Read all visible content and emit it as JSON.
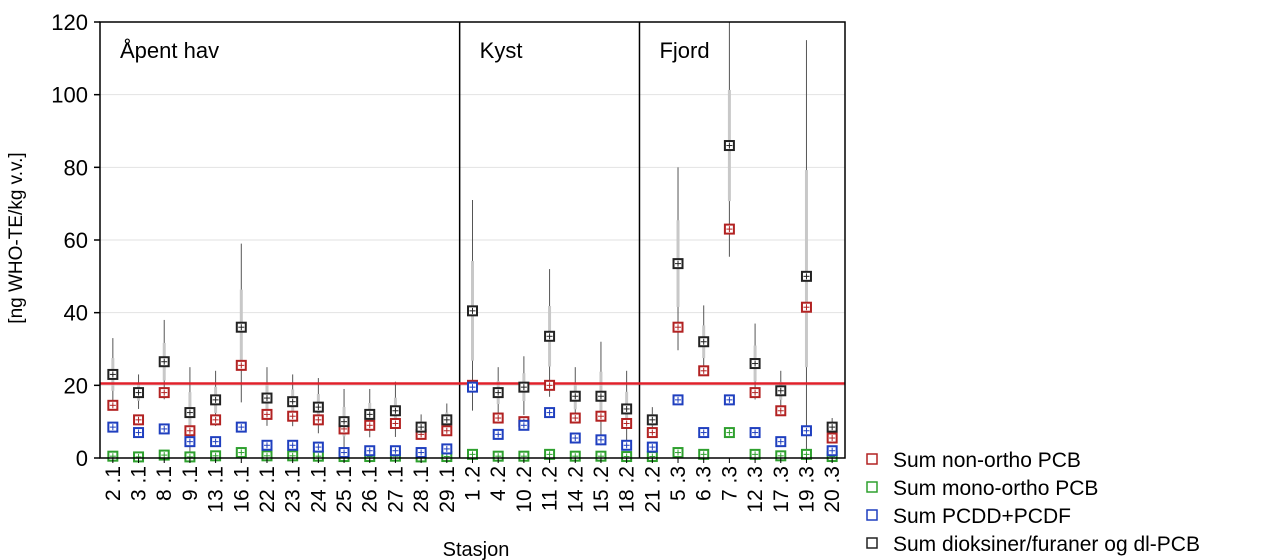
{
  "chart_data": {
    "type": "scatter",
    "xlabel": "Stasjon",
    "ylabel": "[ng WHO-TE/kg v.v.]",
    "ylim": [
      0,
      120
    ],
    "yticks": [
      0,
      20,
      40,
      60,
      80,
      100,
      120
    ],
    "grid": true,
    "legend_position": "bottom-right",
    "reference_line": {
      "y": 20.5,
      "color": "#e0202a"
    },
    "regions": [
      {
        "label": "Åpent hav",
        "from": 0,
        "to": 14
      },
      {
        "label": "Kyst",
        "from": 14,
        "to": 21
      },
      {
        "label": "Fjord",
        "from": 21,
        "to": 28
      }
    ],
    "categories": [
      "2 .1",
      "3 .1",
      "8 .1",
      "9 .1",
      "13 .1",
      "16 .1",
      "22 .1",
      "23 .1",
      "24 .1",
      "25 .1",
      "26 .1",
      "27 .1",
      "28 .1",
      "29 .1",
      "1 .2",
      "4 .2",
      "10 .2",
      "11 .2",
      "14 .2",
      "15 .2",
      "18 .2",
      "21 .2",
      "5 .3",
      "6 .3",
      "7 .3",
      "12 .3",
      "17 .3",
      "19 .3",
      "20 .3"
    ],
    "series": [
      {
        "name": "Sum non-ortho PCB",
        "color": "#b22222",
        "values": [
          14.5,
          10.5,
          18,
          7.5,
          10.5,
          25.5,
          12,
          11.5,
          10.5,
          8,
          9,
          9.5,
          6.5,
          7.5,
          20,
          11,
          10,
          20,
          11,
          11.5,
          9.5,
          7,
          36,
          24,
          63,
          18,
          13,
          41.5,
          5.5
        ]
      },
      {
        "name": "Sum mono-ortho PCB",
        "color": "#2ea02e",
        "values": [
          0.5,
          0.3,
          0.8,
          0.3,
          0.6,
          1.5,
          0.6,
          0.6,
          0.5,
          0.4,
          0.4,
          0.5,
          0.3,
          0.4,
          1,
          0.5,
          0.5,
          1,
          0.5,
          0.5,
          0.4,
          0.4,
          1.5,
          1,
          7,
          1,
          0.6,
          1,
          0.4
        ]
      },
      {
        "name": "Sum PCDD+PCDF",
        "color": "#1f3fbf",
        "values": [
          8.5,
          7,
          8,
          4.5,
          4.5,
          8.5,
          3.5,
          3.5,
          3,
          1.5,
          2,
          2,
          1.5,
          2.5,
          19.5,
          6.5,
          9,
          12.5,
          5.5,
          5,
          3.5,
          3,
          16,
          7,
          16,
          7,
          4.5,
          7.5,
          2
        ]
      },
      {
        "name": "Sum dioksiner/furaner og dl-PCB",
        "color": "#222222",
        "values": [
          23,
          18,
          26.5,
          12.5,
          16,
          36,
          16.5,
          15.5,
          14,
          10,
          12,
          13,
          8.5,
          10.5,
          40.5,
          18,
          19.5,
          33.5,
          17,
          17,
          13.5,
          10.5,
          53.5,
          32,
          86,
          26,
          18.5,
          50,
          8.5
        ]
      }
    ],
    "error_max": [
      33,
      23,
      38,
      25,
      24,
      59,
      25,
      23,
      22,
      19,
      19,
      21,
      12,
      15,
      71,
      25,
      28,
      52,
      25,
      32,
      24,
      14,
      80,
      42,
      120,
      37,
      24,
      115,
      11
    ]
  }
}
